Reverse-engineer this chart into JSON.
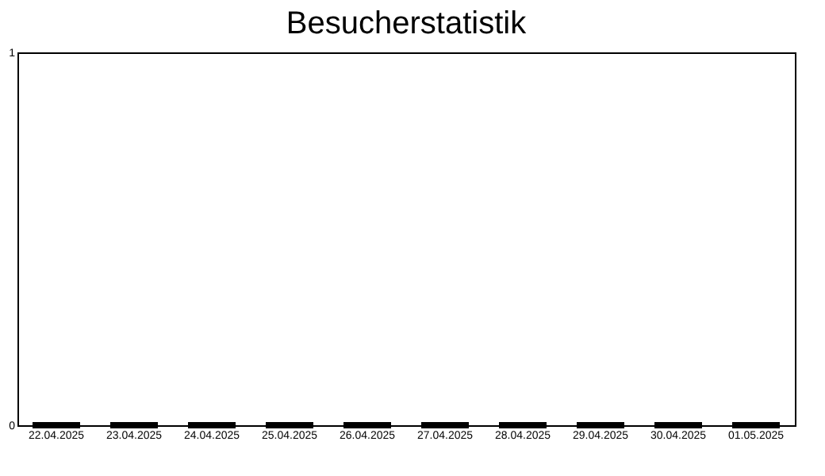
{
  "chart_data": {
    "type": "bar",
    "title": "Besucherstatistik",
    "categories": [
      "22.04.2025",
      "23.04.2025",
      "24.04.2025",
      "25.04.2025",
      "26.04.2025",
      "27.04.2025",
      "28.04.2025",
      "29.04.2025",
      "30.04.2025",
      "01.05.2025"
    ],
    "values": [
      0,
      0,
      0,
      0,
      0,
      0,
      0,
      0,
      0,
      0
    ],
    "color": "#000000",
    "ylim": [
      0,
      1
    ],
    "yticks": [
      0,
      1
    ],
    "grid": false
  }
}
